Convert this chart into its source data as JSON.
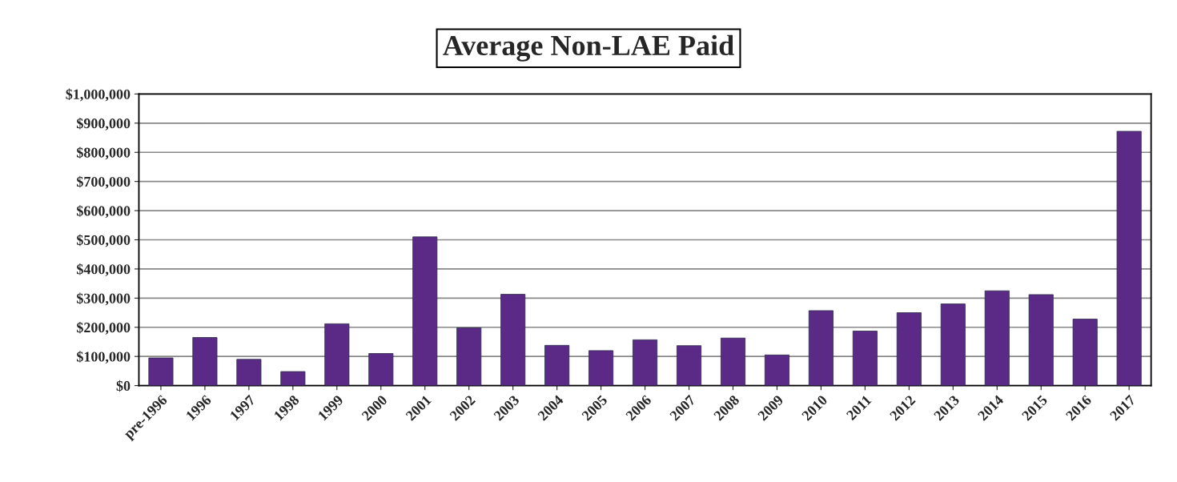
{
  "chart_data": {
    "type": "bar",
    "title": "Average Non-LAE Paid",
    "categories": [
      "pre-1996",
      "1996",
      "1997",
      "1998",
      "1999",
      "2000",
      "2001",
      "2002",
      "2003",
      "2004",
      "2005",
      "2006",
      "2007",
      "2008",
      "2009",
      "2010",
      "2011",
      "2012",
      "2013",
      "2014",
      "2015",
      "2016",
      "2017"
    ],
    "values": [
      95000,
      165000,
      90000,
      48000,
      212000,
      110000,
      510000,
      198000,
      313000,
      138000,
      120000,
      157000,
      137000,
      163000,
      105000,
      257000,
      187000,
      250000,
      280000,
      325000,
      312000,
      228000,
      872000
    ],
    "color": "#5b2a86",
    "ylim": [
      0,
      1000000
    ],
    "yticks": [
      {
        "value": 0,
        "label": "$0"
      },
      {
        "value": 100000,
        "label": "$100,000"
      },
      {
        "value": 200000,
        "label": "$200,000"
      },
      {
        "value": 300000,
        "label": "$300,000"
      },
      {
        "value": 400000,
        "label": "$400,000"
      },
      {
        "value": 500000,
        "label": "$500,000"
      },
      {
        "value": 600000,
        "label": "$600,000"
      },
      {
        "value": 700000,
        "label": "$700,000"
      },
      {
        "value": 800000,
        "label": "$800,000"
      },
      {
        "value": 900000,
        "label": "$900,000"
      },
      {
        "value": 1000000,
        "label": "$1,000,000"
      }
    ],
    "grid": "y"
  }
}
